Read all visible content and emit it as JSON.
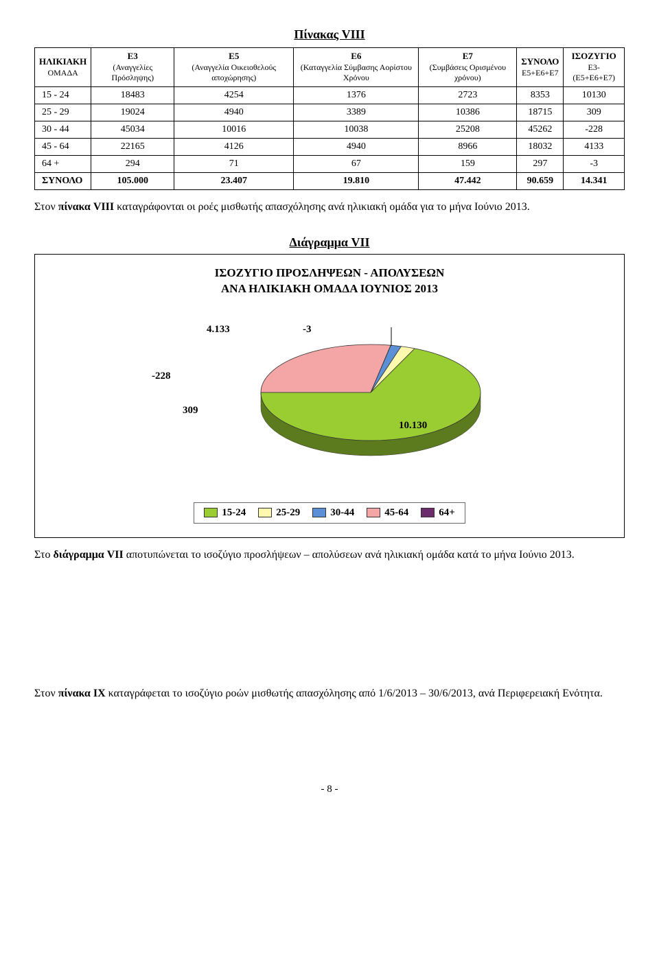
{
  "table": {
    "title": "Πίνακας VIII",
    "columns": [
      {
        "main": "ΗΛΙΚΙΑΚΗ",
        "sub": "ΟΜΑΔΑ"
      },
      {
        "main": "Ε3",
        "sub": "(Αναγγελίες Πρόσληψης)"
      },
      {
        "main": "Ε5",
        "sub": "(Αναγγελία Οικειοθελούς αποχώρησης)"
      },
      {
        "main": "Ε6",
        "sub": "(Καταγγελία Σύμβασης Αορίστου Χρόνου"
      },
      {
        "main": "Ε7",
        "sub": "(Συμβάσεις Ορισμένου χρόνου)"
      },
      {
        "main": "ΣΥΝΟΛΟ",
        "sub": "Ε5+Ε6+Ε7"
      },
      {
        "main": "ΙΣΟΖΥΓΙΟ",
        "sub": "Ε3-(Ε5+Ε6+Ε7)"
      }
    ],
    "rows": [
      [
        "15 - 24",
        "18483",
        "4254",
        "1376",
        "2723",
        "8353",
        "10130"
      ],
      [
        "25 - 29",
        "19024",
        "4940",
        "3389",
        "10386",
        "18715",
        "309"
      ],
      [
        "30 - 44",
        "45034",
        "10016",
        "10038",
        "25208",
        "45262",
        "-228"
      ],
      [
        "45 - 64",
        "22165",
        "4126",
        "4940",
        "8966",
        "18032",
        "4133"
      ],
      [
        "64 +",
        "294",
        "71",
        "67",
        "159",
        "297",
        "-3"
      ]
    ],
    "total_row": [
      "ΣΥΝΟΛΟ",
      "105.000",
      "23.407",
      "19.810",
      "47.442",
      "90.659",
      "14.341"
    ]
  },
  "paragraph1_prefix": "Στον ",
  "paragraph1_bold": "πίνακα VIII",
  "paragraph1_rest": " καταγράφονται οι ροές μισθωτής απασχόλησης ανά ηλικιακή ομάδα για το μήνα Ιούνιο 2013.",
  "chart": {
    "heading": "Διάγραμμα VII",
    "inner_title_line1": "ΙΣΟΖΥΓΙΟ ΠΡΟΣΛΗΨΕΩΝ - ΑΠΟΛΥΣΕΩΝ",
    "inner_title_line2": "ΑΝΑ ΗΛΙΚΙΑΚΗ ΟΜΑΔΑ ΙΟΥΝΙΟΣ 2013",
    "type": "pie3d",
    "slices": [
      {
        "label": "15-24",
        "value": 10130,
        "display": "10.130",
        "color": "#9acd32"
      },
      {
        "label": "25-29",
        "value": 309,
        "display": "309",
        "color": "#fff9b0"
      },
      {
        "label": "30-44",
        "value": -228,
        "display": "-228",
        "color": "#5b8fd6"
      },
      {
        "label": "45-64",
        "value": 4133,
        "display": "4.133",
        "color": "#f4a6a6"
      },
      {
        "label": "64+",
        "value": -3,
        "display": "-3",
        "color": "#6b2c6b"
      }
    ],
    "legend": [
      "15-24",
      "25-29",
      "30-44",
      "45-64",
      "64+"
    ],
    "background_color": "#ffffff",
    "border_color": "#000000"
  },
  "paragraph2_prefix": "Στο ",
  "paragraph2_bold": "διάγραμμα VII",
  "paragraph2_rest": " αποτυπώνεται το ισοζύγιο προσλήψεων – απολύσεων ανά ηλικιακή ομάδα κατά το μήνα Ιούνιο 2013.",
  "paragraph3_prefix": "Στον ",
  "paragraph3_bold": "πίνακα IX",
  "paragraph3_rest": " καταγράφεται το ισοζύγιο ροών μισθωτής απασχόλησης από 1/6/2013 – 30/6/2013, ανά Περιφερειακή Ενότητα.",
  "page_number": "- 8 -"
}
